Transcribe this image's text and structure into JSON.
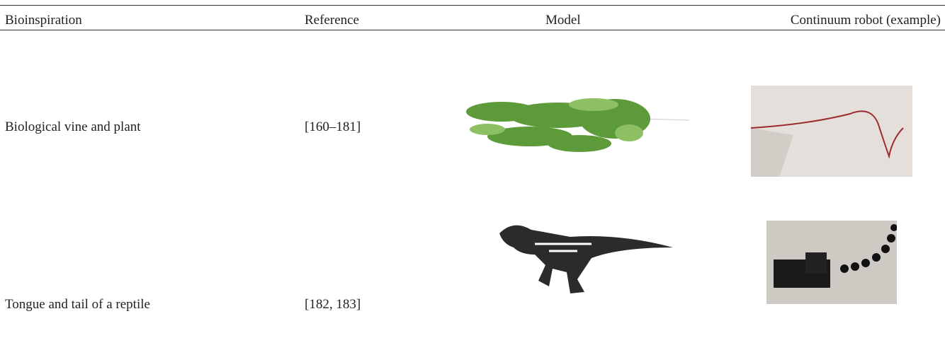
{
  "table": {
    "header": [
      "Bioinspiration",
      "Reference",
      "Model",
      "Continuum robot (example)"
    ],
    "rows": [
      [
        "Biological vine and plant",
        "[160–181]"
      ],
      [
        "Tongue and tail of a reptile",
        "[182, 183]"
      ]
    ]
  }
}
